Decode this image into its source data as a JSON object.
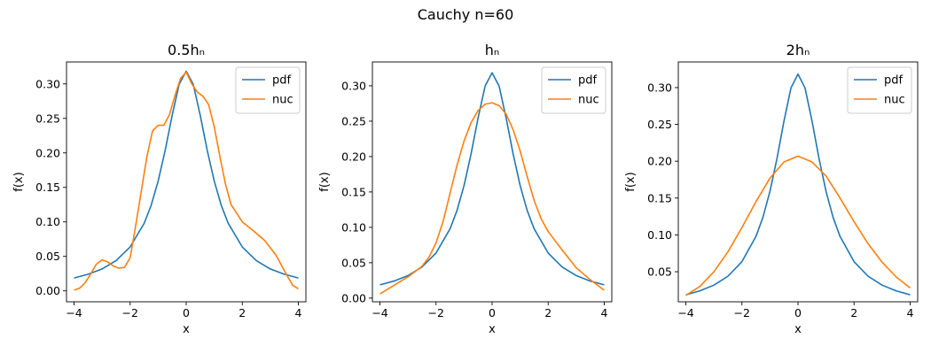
{
  "figure": {
    "suptitle": "Cauchy n=60"
  },
  "chart_data": [
    {
      "type": "line",
      "title": "0.5hₙ",
      "xlabel": "x",
      "ylabel": "f(x)",
      "xlim": [
        -4.27,
        4.27
      ],
      "ylim": [
        -0.0158,
        0.3318
      ],
      "xticks": [
        -4,
        -2,
        0,
        2,
        4
      ],
      "xtick_labels": [
        "−4",
        "−2",
        "0",
        "2",
        "4"
      ],
      "yticks": [
        0.0,
        0.05,
        0.1,
        0.15,
        0.2,
        0.25,
        0.3
      ],
      "ytick_labels": [
        "0.00",
        "0.05",
        "0.10",
        "0.15",
        "0.20",
        "0.25",
        "0.30"
      ],
      "grid": false,
      "legend_position": "upper right",
      "series": [
        {
          "name": "pdf",
          "color": "#1f77b4",
          "x": [
            -4,
            -3.5,
            -3,
            -2.5,
            -2,
            -1.5,
            -1.25,
            -1,
            -0.75,
            -0.5,
            -0.25,
            0,
            0.25,
            0.5,
            0.75,
            1,
            1.25,
            1.5,
            2,
            2.5,
            3,
            3.5,
            4
          ],
          "y": [
            0.0187,
            0.0241,
            0.0318,
            0.0439,
            0.0637,
            0.0979,
            0.124,
            0.1592,
            0.2037,
            0.2546,
            0.2996,
            0.3183,
            0.2996,
            0.2546,
            0.2037,
            0.1592,
            0.124,
            0.0979,
            0.0637,
            0.0439,
            0.0318,
            0.0241,
            0.0187
          ]
        },
        {
          "name": "nuc",
          "color": "#ff7f0e",
          "x": [
            -4,
            -3.8,
            -3.6,
            -3.4,
            -3.2,
            -3.0,
            -2.8,
            -2.6,
            -2.4,
            -2.2,
            -2.0,
            -1.8,
            -1.6,
            -1.4,
            -1.2,
            -1.0,
            -0.8,
            -0.6,
            -0.4,
            -0.2,
            0,
            0.2,
            0.4,
            0.6,
            0.8,
            1.0,
            1.2,
            1.4,
            1.6,
            2.0,
            2.4,
            2.8,
            3.2,
            3.6,
            3.8,
            4.0
          ],
          "y": [
            0.001,
            0.004,
            0.012,
            0.025,
            0.039,
            0.045,
            0.042,
            0.036,
            0.033,
            0.034,
            0.048,
            0.095,
            0.145,
            0.195,
            0.232,
            0.24,
            0.24,
            0.255,
            0.283,
            0.308,
            0.317,
            0.3,
            0.288,
            0.282,
            0.27,
            0.238,
            0.195,
            0.155,
            0.125,
            0.1,
            0.087,
            0.073,
            0.052,
            0.022,
            0.008,
            0.003
          ]
        }
      ]
    },
    {
      "type": "line",
      "title": "hₙ",
      "xlabel": "x",
      "ylabel": "f(x)",
      "xlim": [
        -4.27,
        4.27
      ],
      "ylim": [
        -0.0052,
        0.3337
      ],
      "xticks": [
        -4,
        -2,
        0,
        2,
        4
      ],
      "xtick_labels": [
        "−4",
        "−2",
        "0",
        "2",
        "4"
      ],
      "yticks": [
        0.0,
        0.05,
        0.1,
        0.15,
        0.2,
        0.25,
        0.3
      ],
      "ytick_labels": [
        "0.00",
        "0.05",
        "0.10",
        "0.15",
        "0.20",
        "0.25",
        "0.30"
      ],
      "grid": false,
      "legend_position": "upper right",
      "series": [
        {
          "name": "pdf",
          "color": "#1f77b4",
          "x": [
            -4,
            -3.5,
            -3,
            -2.5,
            -2,
            -1.5,
            -1.25,
            -1,
            -0.75,
            -0.5,
            -0.25,
            0,
            0.25,
            0.5,
            0.75,
            1,
            1.25,
            1.5,
            2,
            2.5,
            3,
            3.5,
            4
          ],
          "y": [
            0.0187,
            0.0241,
            0.0318,
            0.0439,
            0.0637,
            0.0979,
            0.124,
            0.1592,
            0.2037,
            0.2546,
            0.2996,
            0.3183,
            0.2996,
            0.2546,
            0.2037,
            0.1592,
            0.124,
            0.0979,
            0.0637,
            0.0439,
            0.0318,
            0.0241,
            0.0187
          ]
        },
        {
          "name": "nuc",
          "color": "#ff7f0e",
          "x": [
            -4,
            -3.5,
            -3,
            -2.5,
            -2.25,
            -2,
            -1.75,
            -1.5,
            -1.25,
            -1,
            -0.75,
            -0.5,
            -0.25,
            0,
            0.25,
            0.5,
            0.75,
            1,
            1.25,
            1.5,
            1.75,
            2,
            2.5,
            3,
            3.5,
            4
          ],
          "y": [
            0.006,
            0.018,
            0.03,
            0.045,
            0.058,
            0.078,
            0.108,
            0.148,
            0.188,
            0.222,
            0.248,
            0.265,
            0.274,
            0.276,
            0.272,
            0.26,
            0.238,
            0.208,
            0.172,
            0.138,
            0.112,
            0.094,
            0.068,
            0.043,
            0.026,
            0.011
          ]
        }
      ]
    },
    {
      "type": "line",
      "title": "2hₙ",
      "xlabel": "x",
      "ylabel": "f(x)",
      "xlim": [
        -4.27,
        4.27
      ],
      "ylim": [
        0.0092,
        0.3348
      ],
      "xticks": [
        -4,
        -2,
        0,
        2,
        4
      ],
      "xtick_labels": [
        "−4",
        "−2",
        "0",
        "2",
        "4"
      ],
      "yticks": [
        0.05,
        0.1,
        0.15,
        0.2,
        0.25,
        0.3
      ],
      "ytick_labels": [
        "0.05",
        "0.10",
        "0.15",
        "0.20",
        "0.25",
        "0.30"
      ],
      "grid": false,
      "legend_position": "upper right",
      "series": [
        {
          "name": "pdf",
          "color": "#1f77b4",
          "x": [
            -4,
            -3.5,
            -3,
            -2.5,
            -2,
            -1.5,
            -1.25,
            -1,
            -0.75,
            -0.5,
            -0.25,
            0,
            0.25,
            0.5,
            0.75,
            1,
            1.25,
            1.5,
            2,
            2.5,
            3,
            3.5,
            4
          ],
          "y": [
            0.0187,
            0.0241,
            0.0318,
            0.0439,
            0.0637,
            0.0979,
            0.124,
            0.1592,
            0.2037,
            0.2546,
            0.2996,
            0.3183,
            0.2996,
            0.2546,
            0.2037,
            0.1592,
            0.124,
            0.0979,
            0.0637,
            0.0439,
            0.0318,
            0.0241,
            0.0187
          ]
        },
        {
          "name": "nuc",
          "color": "#ff7f0e",
          "x": [
            -4,
            -3.5,
            -3,
            -2.5,
            -2,
            -1.5,
            -1,
            -0.5,
            0,
            0.5,
            1,
            1.5,
            2,
            2.5,
            3,
            3.5,
            4
          ],
          "y": [
            0.018,
            0.03,
            0.05,
            0.077,
            0.11,
            0.145,
            0.177,
            0.199,
            0.207,
            0.199,
            0.18,
            0.15,
            0.118,
            0.088,
            0.063,
            0.043,
            0.028
          ]
        }
      ]
    }
  ]
}
